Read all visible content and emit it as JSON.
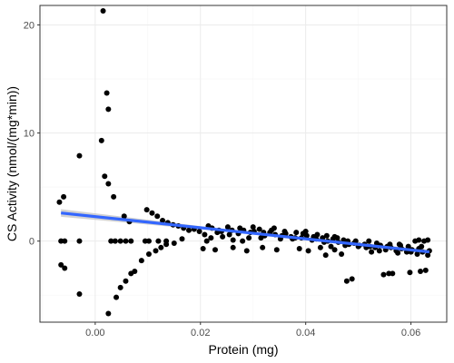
{
  "chart_data": {
    "type": "scatter",
    "title": "",
    "xlabel": "Protein (mg)",
    "ylabel": "CS Activity (nmol/(mg*min))",
    "xlim": [
      -0.0105,
      0.0668
    ],
    "ylim": [
      -7.5,
      21.8
    ],
    "x_ticks": [
      0.0,
      0.02,
      0.04,
      0.06
    ],
    "x_tick_labels": [
      "0.00",
      "0.02",
      "0.04",
      "0.06"
    ],
    "y_ticks": [
      -10,
      0,
      10,
      20
    ],
    "y_tick_labels": [
      "",
      "0",
      "10",
      "20"
    ],
    "grid": true,
    "theme": "bw",
    "colors": {
      "points": "#000000",
      "fit_line": "#3366ff",
      "ribbon": "#bfbfbf",
      "grid_major": "#ebebeb",
      "grid_minor": "#f5f5f5",
      "panel_border": "#333333"
    },
    "fit_line": {
      "x": [
        -0.0065,
        0.0635
      ],
      "y": [
        2.6,
        -1.0
      ]
    },
    "points": [
      {
        "x": 0.0015,
        "y": 21.3
      },
      {
        "x": 0.0022,
        "y": 13.7
      },
      {
        "x": 0.0025,
        "y": 12.2
      },
      {
        "x": 0.0012,
        "y": 9.3
      },
      {
        "x": -0.003,
        "y": 7.9
      },
      {
        "x": 0.0018,
        "y": 6.0
      },
      {
        "x": 0.0025,
        "y": 5.3
      },
      {
        "x": 0.0035,
        "y": 4.1
      },
      {
        "x": -0.006,
        "y": 4.1
      },
      {
        "x": -0.0068,
        "y": 3.6
      },
      {
        "x": 0.0055,
        "y": 2.3
      },
      {
        "x": 0.0065,
        "y": 1.8
      },
      {
        "x": -0.0065,
        "y": 0.0
      },
      {
        "x": -0.0058,
        "y": 0.0
      },
      {
        "x": -0.003,
        "y": 0.0
      },
      {
        "x": 0.003,
        "y": 0.0
      },
      {
        "x": 0.0038,
        "y": 0.0
      },
      {
        "x": 0.0048,
        "y": 0.0
      },
      {
        "x": 0.0058,
        "y": 0.0
      },
      {
        "x": 0.0068,
        "y": 0.0
      },
      {
        "x": 0.0095,
        "y": 0.0
      },
      {
        "x": 0.0102,
        "y": 0.0
      },
      {
        "x": 0.012,
        "y": 0.0
      },
      {
        "x": 0.0135,
        "y": 0.0
      },
      {
        "x": -0.0065,
        "y": -2.2
      },
      {
        "x": -0.0058,
        "y": -2.5
      },
      {
        "x": -0.003,
        "y": -4.9
      },
      {
        "x": 0.0025,
        "y": -6.7
      },
      {
        "x": 0.004,
        "y": -5.2
      },
      {
        "x": 0.0048,
        "y": -4.3
      },
      {
        "x": 0.0058,
        "y": -3.7
      },
      {
        "x": 0.0068,
        "y": -3.0
      },
      {
        "x": 0.0075,
        "y": -2.8
      },
      {
        "x": 0.0088,
        "y": -1.8
      },
      {
        "x": 0.0102,
        "y": -1.2
      },
      {
        "x": 0.0115,
        "y": -0.9
      },
      {
        "x": 0.0125,
        "y": -0.6
      },
      {
        "x": 0.0135,
        "y": -0.3
      },
      {
        "x": 0.015,
        "y": -0.2
      },
      {
        "x": 0.0165,
        "y": 0.2
      },
      {
        "x": 0.0098,
        "y": 2.9
      },
      {
        "x": 0.0108,
        "y": 2.6
      },
      {
        "x": 0.0118,
        "y": 2.3
      },
      {
        "x": 0.0128,
        "y": 1.9
      },
      {
        "x": 0.0138,
        "y": 1.7
      },
      {
        "x": 0.0148,
        "y": 1.5
      },
      {
        "x": 0.0158,
        "y": 1.4
      },
      {
        "x": 0.0168,
        "y": 1.2
      },
      {
        "x": 0.0178,
        "y": 1.0
      },
      {
        "x": 0.0188,
        "y": 1.1
      },
      {
        "x": 0.0198,
        "y": 0.9
      },
      {
        "x": 0.0208,
        "y": 0.6
      },
      {
        "x": 0.0212,
        "y": 0.0
      },
      {
        "x": 0.0222,
        "y": 1.2
      },
      {
        "x": 0.0232,
        "y": 0.8
      },
      {
        "x": 0.0242,
        "y": 0.4
      },
      {
        "x": 0.0252,
        "y": 1.3
      },
      {
        "x": 0.0262,
        "y": 0.1
      },
      {
        "x": 0.0272,
        "y": 0.7
      },
      {
        "x": 0.0282,
        "y": 1.0
      },
      {
        "x": 0.0292,
        "y": 0.3
      },
      {
        "x": 0.0302,
        "y": 0.9
      },
      {
        "x": 0.0312,
        "y": 1.1
      },
      {
        "x": 0.0322,
        "y": 0.5
      },
      {
        "x": 0.0332,
        "y": 0.8
      },
      {
        "x": 0.0342,
        "y": 0.6
      },
      {
        "x": 0.0352,
        "y": 0.2
      },
      {
        "x": 0.0362,
        "y": 0.7
      },
      {
        "x": 0.0372,
        "y": 0.4
      },
      {
        "x": 0.0382,
        "y": 0.8
      },
      {
        "x": 0.0392,
        "y": 0.3
      },
      {
        "x": 0.0402,
        "y": 0.5
      },
      {
        "x": 0.0412,
        "y": 0.1
      },
      {
        "x": 0.0422,
        "y": 0.6
      },
      {
        "x": 0.0432,
        "y": 0.3
      },
      {
        "x": 0.0442,
        "y": 0.0
      },
      {
        "x": 0.0452,
        "y": 0.2
      },
      {
        "x": 0.0462,
        "y": -0.1
      },
      {
        "x": 0.0472,
        "y": 0.1
      },
      {
        "x": 0.0482,
        "y": -0.3
      },
      {
        "x": 0.0492,
        "y": -0.2
      },
      {
        "x": 0.0502,
        "y": -0.4
      },
      {
        "x": 0.0512,
        "y": -0.3
      },
      {
        "x": 0.0522,
        "y": -0.5
      },
      {
        "x": 0.0532,
        "y": -0.6
      },
      {
        "x": 0.0542,
        "y": -0.4
      },
      {
        "x": 0.0552,
        "y": -0.8
      },
      {
        "x": 0.0562,
        "y": -0.6
      },
      {
        "x": 0.0572,
        "y": -0.9
      },
      {
        "x": 0.0582,
        "y": -0.7
      },
      {
        "x": 0.0592,
        "y": -1.0
      },
      {
        "x": 0.0602,
        "y": -0.8
      },
      {
        "x": 0.0612,
        "y": -1.2
      },
      {
        "x": 0.0622,
        "y": -1.0
      },
      {
        "x": 0.0632,
        "y": -1.3
      },
      {
        "x": 0.0215,
        "y": 1.4
      },
      {
        "x": 0.0235,
        "y": 1.0
      },
      {
        "x": 0.0255,
        "y": 0.6
      },
      {
        "x": 0.0275,
        "y": 1.2
      },
      {
        "x": 0.0295,
        "y": 0.8
      },
      {
        "x": 0.0315,
        "y": 0.3
      },
      {
        "x": 0.0335,
        "y": 1.0
      },
      {
        "x": 0.0355,
        "y": 0.5
      },
      {
        "x": 0.0375,
        "y": 0.2
      },
      {
        "x": 0.0395,
        "y": 0.7
      },
      {
        "x": 0.0415,
        "y": 0.4
      },
      {
        "x": 0.0435,
        "y": -0.1
      },
      {
        "x": 0.0455,
        "y": 0.4
      },
      {
        "x": 0.0475,
        "y": -0.4
      },
      {
        "x": 0.0495,
        "y": 0.0
      },
      {
        "x": 0.0515,
        "y": -0.6
      },
      {
        "x": 0.0535,
        "y": -0.2
      },
      {
        "x": 0.0555,
        "y": -0.5
      },
      {
        "x": 0.0575,
        "y": -1.1
      },
      {
        "x": 0.0595,
        "y": -0.5
      },
      {
        "x": 0.0615,
        "y": -0.7
      },
      {
        "x": 0.0635,
        "y": -0.9
      },
      {
        "x": 0.022,
        "y": 0.3
      },
      {
        "x": 0.024,
        "y": 0.9
      },
      {
        "x": 0.026,
        "y": 1.0
      },
      {
        "x": 0.028,
        "y": 0.0
      },
      {
        "x": 0.03,
        "y": 1.3
      },
      {
        "x": 0.032,
        "y": 0.8
      },
      {
        "x": 0.034,
        "y": 1.2
      },
      {
        "x": 0.036,
        "y": 0.9
      },
      {
        "x": 0.038,
        "y": 0.3
      },
      {
        "x": 0.04,
        "y": 0.9
      },
      {
        "x": 0.042,
        "y": 0.2
      },
      {
        "x": 0.044,
        "y": 0.5
      },
      {
        "x": 0.046,
        "y": 0.3
      },
      {
        "x": 0.048,
        "y": 0.0
      },
      {
        "x": 0.05,
        "y": -0.5
      },
      {
        "x": 0.052,
        "y": 0.0
      },
      {
        "x": 0.054,
        "y": -0.9
      },
      {
        "x": 0.056,
        "y": -0.3
      },
      {
        "x": 0.058,
        "y": -0.4
      },
      {
        "x": 0.06,
        "y": -1.0
      },
      {
        "x": 0.062,
        "y": -0.5
      },
      {
        "x": 0.0205,
        "y": -0.7
      },
      {
        "x": 0.0228,
        "y": -0.8
      },
      {
        "x": 0.0262,
        "y": -0.6
      },
      {
        "x": 0.0288,
        "y": -0.9
      },
      {
        "x": 0.0318,
        "y": -0.6
      },
      {
        "x": 0.0345,
        "y": -0.8
      },
      {
        "x": 0.0388,
        "y": -0.7
      },
      {
        "x": 0.0405,
        "y": -0.9
      },
      {
        "x": 0.0428,
        "y": -0.6
      },
      {
        "x": 0.0455,
        "y": -0.8
      },
      {
        "x": 0.0468,
        "y": -1.2
      },
      {
        "x": 0.0478,
        "y": -3.7
      },
      {
        "x": 0.0488,
        "y": -3.5
      },
      {
        "x": 0.0548,
        "y": -3.1
      },
      {
        "x": 0.0558,
        "y": -3.0
      },
      {
        "x": 0.0565,
        "y": -3.0
      },
      {
        "x": 0.0598,
        "y": -2.9
      },
      {
        "x": 0.0618,
        "y": -2.8
      },
      {
        "x": 0.0628,
        "y": -2.7
      },
      {
        "x": 0.0438,
        "y": -1.3
      },
      {
        "x": 0.0448,
        "y": -0.5
      },
      {
        "x": 0.0525,
        "y": -1.0
      },
      {
        "x": 0.0578,
        "y": -0.3
      },
      {
        "x": 0.0608,
        "y": 0.0
      },
      {
        "x": 0.0615,
        "y": 0.1
      },
      {
        "x": 0.0625,
        "y": 0.0
      },
      {
        "x": 0.0632,
        "y": 0.1
      }
    ]
  }
}
